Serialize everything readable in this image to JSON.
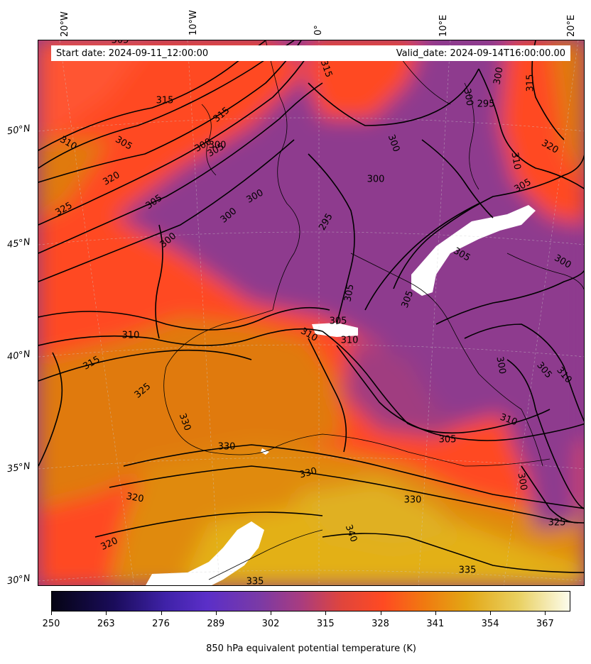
{
  "header": {
    "start_date": "Start date: 2024-09-11_12:00:00",
    "valid_date": "Valid_date: 2024-09-14T16:00:00.00"
  },
  "axes": {
    "lon_labels": [
      "20°W",
      "10°W",
      "0°",
      "10°E",
      "20°E"
    ],
    "lat_labels": [
      "50°N",
      "45°N",
      "40°N",
      "35°N",
      "30°N"
    ]
  },
  "colorbar": {
    "label": "850 hPa equivalent potential temperature (K)",
    "ticks": [
      "250",
      "263",
      "276",
      "289",
      "302",
      "315",
      "328",
      "341",
      "354",
      "367"
    ],
    "range": [
      250,
      373
    ]
  },
  "contour_labels": [
    "305",
    "315",
    "315",
    "305",
    "315",
    "310",
    "300",
    "305",
    "320",
    "325",
    "305",
    "300",
    "300",
    "300",
    "295",
    "300",
    "300",
    "300",
    "295",
    "300",
    "300",
    "315",
    "320",
    "310",
    "305",
    "305",
    "300",
    "305",
    "305",
    "310",
    "310",
    "305",
    "310",
    "315",
    "325",
    "330",
    "330",
    "330",
    "320",
    "320",
    "330",
    "340",
    "335",
    "335",
    "300",
    "305",
    "310",
    "305",
    "300",
    "325",
    "310"
  ],
  "colors": {
    "cool": "#8e3a8e",
    "mid": "#ff4a22",
    "warm": "#e08a10",
    "hot": "#e3b018"
  }
}
